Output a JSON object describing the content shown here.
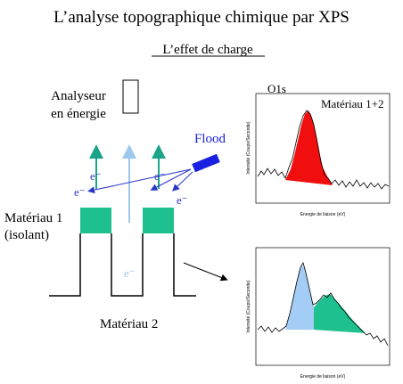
{
  "header": {
    "title": "L’analyse topographique chimique par XPS",
    "subtitle": "L’effet de charge"
  },
  "analyzer": [
    "Analyseur",
    "en énergie"
  ],
  "flood": "Flood",
  "electrons": [
    "e⁻",
    "e⁻",
    "e⁻",
    "e⁻",
    "e⁻"
  ],
  "material1": [
    "Matériau 1",
    "(isolant)"
  ],
  "material2": "Matériau 2",
  "spectrum_top": {
    "peak": "O1s",
    "label": "Matériau 1+2",
    "ylabel": "Intensité (Coups/Seconde)",
    "xlabel": "Energie de liaison (eV)"
  },
  "spectrum_bottom": {
    "ylabel": "Intensité (Coups/Seconde)",
    "xlabel": "Energie de liaison (eV)"
  }
}
